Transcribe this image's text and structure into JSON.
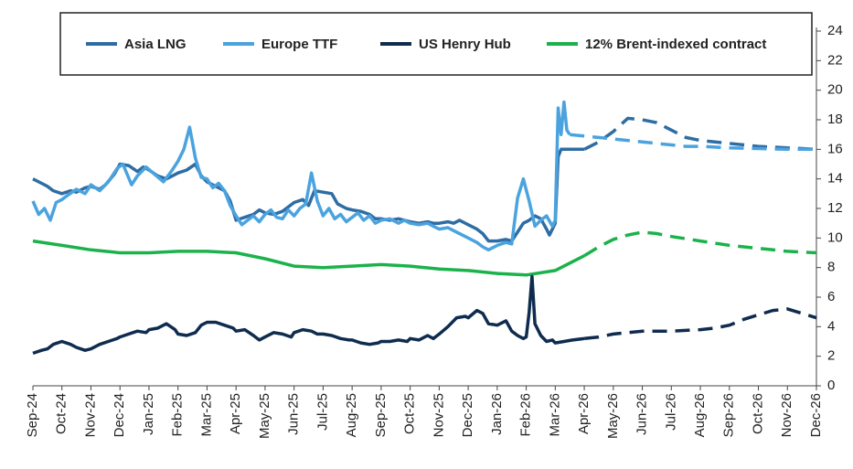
{
  "chart_data": {
    "type": "line",
    "title": "",
    "xlabel": "",
    "ylabel": "",
    "ylim": [
      0,
      24
    ],
    "y_ticks": [
      0,
      2,
      4,
      6,
      8,
      10,
      12,
      14,
      16,
      18,
      20,
      22,
      24
    ],
    "y_axis_side": "right",
    "grid": false,
    "legend_position": "top",
    "x_ticks": [
      "Sep-24",
      "Oct-24",
      "Nov-24",
      "Dec-24",
      "Jan-25",
      "Feb-25",
      "Mar-25",
      "Apr-25",
      "May-25",
      "Jun-25",
      "Jul-25",
      "Aug-25",
      "Sep-25",
      "Oct-25",
      "Nov-25",
      "Dec-25",
      "Jan-26",
      "Feb-26",
      "Mar-26",
      "Apr-26",
      "May-26",
      "Jun-26",
      "Jul-26",
      "Aug-26",
      "Sep-26",
      "Oct-26",
      "Nov-26",
      "Dec-26"
    ],
    "x_unit": "months since Sep-24",
    "series": [
      {
        "name": "Asia LNG",
        "color": "#2e6da4",
        "style": "solid",
        "points": [
          [
            0,
            14
          ],
          [
            0.3,
            13.7
          ],
          [
            0.5,
            13.5
          ],
          [
            0.7,
            13.2
          ],
          [
            1,
            13
          ],
          [
            1.3,
            13.2
          ],
          [
            1.5,
            13.1
          ],
          [
            1.8,
            13.4
          ],
          [
            2,
            13.5
          ],
          [
            2.3,
            13.3
          ],
          [
            2.5,
            13.6
          ],
          [
            2.8,
            14.3
          ],
          [
            3,
            15
          ],
          [
            3.3,
            14.9
          ],
          [
            3.6,
            14.5
          ],
          [
            3.8,
            14.8
          ],
          [
            4,
            14.6
          ],
          [
            4.3,
            14.2
          ],
          [
            4.6,
            14
          ],
          [
            4.8,
            14.2
          ],
          [
            5,
            14.4
          ],
          [
            5.3,
            14.6
          ],
          [
            5.6,
            15
          ],
          [
            5.8,
            14.2
          ],
          [
            6,
            13.8
          ],
          [
            6.3,
            13.5
          ],
          [
            6.6,
            13.2
          ],
          [
            6.8,
            12.5
          ],
          [
            7,
            11.2
          ],
          [
            7.3,
            11.4
          ],
          [
            7.6,
            11.6
          ],
          [
            7.8,
            11.9
          ],
          [
            8,
            11.7
          ],
          [
            8.3,
            11.6
          ],
          [
            8.6,
            11.8
          ],
          [
            8.8,
            12.1
          ],
          [
            9,
            12.4
          ],
          [
            9.3,
            12.6
          ],
          [
            9.5,
            12.2
          ],
          [
            9.7,
            13.2
          ],
          [
            10,
            13.1
          ],
          [
            10.3,
            13
          ],
          [
            10.5,
            12.3
          ],
          [
            10.8,
            12
          ],
          [
            11,
            11.9
          ],
          [
            11.3,
            11.8
          ],
          [
            11.6,
            11.6
          ],
          [
            11.8,
            11.3
          ],
          [
            12,
            11.3
          ],
          [
            12.3,
            11.2
          ],
          [
            12.6,
            11.3
          ],
          [
            12.8,
            11.2
          ],
          [
            13,
            11.1
          ],
          [
            13.3,
            11
          ],
          [
            13.6,
            11.1
          ],
          [
            13.8,
            11
          ],
          [
            14,
            11
          ],
          [
            14.3,
            11.1
          ],
          [
            14.5,
            11
          ],
          [
            14.7,
            11.2
          ],
          [
            15,
            10.9
          ],
          [
            15.3,
            10.6
          ],
          [
            15.5,
            10.3
          ],
          [
            15.7,
            9.8
          ],
          [
            16,
            9.8
          ],
          [
            16.3,
            9.9
          ],
          [
            16.5,
            9.8
          ],
          [
            16.7,
            10.4
          ],
          [
            16.9,
            11
          ],
          [
            17.1,
            11.2
          ],
          [
            17.3,
            11.5
          ],
          [
            17.5,
            11.3
          ],
          [
            17.7,
            10.6
          ],
          [
            17.8,
            10.2
          ],
          [
            18,
            11
          ],
          [
            18.1,
            15.5
          ],
          [
            18.2,
            16
          ],
          [
            18.6,
            16
          ],
          [
            19,
            16
          ],
          [
            19.5,
            16.5
          ],
          [
            20,
            17.2
          ],
          [
            20.5,
            18.1
          ],
          [
            21,
            18
          ],
          [
            21.5,
            17.8
          ],
          [
            22,
            17.3
          ],
          [
            22.5,
            16.8
          ],
          [
            23,
            16.6
          ],
          [
            24,
            16.4
          ],
          [
            25,
            16.2
          ],
          [
            26,
            16.1
          ],
          [
            27,
            16
          ]
        ],
        "dashed_from": 19
      },
      {
        "name": "Europe TTF",
        "color": "#4aa3df",
        "style": "solid",
        "points": [
          [
            0,
            12.5
          ],
          [
            0.2,
            11.6
          ],
          [
            0.4,
            12
          ],
          [
            0.6,
            11.2
          ],
          [
            0.8,
            12.4
          ],
          [
            1,
            12.6
          ],
          [
            1.2,
            12.9
          ],
          [
            1.5,
            13.3
          ],
          [
            1.8,
            13
          ],
          [
            2,
            13.6
          ],
          [
            2.3,
            13.2
          ],
          [
            2.6,
            13.8
          ],
          [
            2.9,
            14.7
          ],
          [
            3.1,
            15
          ],
          [
            3.4,
            13.6
          ],
          [
            3.6,
            14.2
          ],
          [
            3.9,
            14.8
          ],
          [
            4.2,
            14.3
          ],
          [
            4.5,
            13.8
          ],
          [
            4.8,
            14.6
          ],
          [
            5,
            15.2
          ],
          [
            5.2,
            16
          ],
          [
            5.4,
            17.5
          ],
          [
            5.6,
            15.4
          ],
          [
            5.8,
            14.1
          ],
          [
            6,
            14
          ],
          [
            6.2,
            13.4
          ],
          [
            6.4,
            13.7
          ],
          [
            6.6,
            13.2
          ],
          [
            6.8,
            12.2
          ],
          [
            7,
            11.5
          ],
          [
            7.2,
            10.9
          ],
          [
            7.4,
            11.2
          ],
          [
            7.6,
            11.5
          ],
          [
            7.8,
            11.1
          ],
          [
            8,
            11.6
          ],
          [
            8.2,
            11.9
          ],
          [
            8.4,
            11.4
          ],
          [
            8.6,
            11.3
          ],
          [
            8.8,
            11.9
          ],
          [
            9,
            11.5
          ],
          [
            9.2,
            12
          ],
          [
            9.4,
            12.3
          ],
          [
            9.6,
            14.4
          ],
          [
            9.8,
            12.5
          ],
          [
            10,
            11.5
          ],
          [
            10.2,
            12
          ],
          [
            10.4,
            11.3
          ],
          [
            10.6,
            11.6
          ],
          [
            10.8,
            11.1
          ],
          [
            11,
            11.4
          ],
          [
            11.2,
            11.7
          ],
          [
            11.4,
            11.2
          ],
          [
            11.6,
            11.5
          ],
          [
            11.8,
            11
          ],
          [
            12,
            11.2
          ],
          [
            12.3,
            11.3
          ],
          [
            12.6,
            11
          ],
          [
            12.8,
            11.2
          ],
          [
            13,
            11
          ],
          [
            13.3,
            10.9
          ],
          [
            13.6,
            11
          ],
          [
            13.8,
            10.8
          ],
          [
            14,
            10.6
          ],
          [
            14.3,
            10.7
          ],
          [
            14.5,
            10.5
          ],
          [
            14.7,
            10.3
          ],
          [
            15,
            10
          ],
          [
            15.3,
            9.7
          ],
          [
            15.5,
            9.4
          ],
          [
            15.7,
            9.2
          ],
          [
            16,
            9.5
          ],
          [
            16.3,
            9.7
          ],
          [
            16.5,
            9.6
          ],
          [
            16.7,
            12.7
          ],
          [
            16.9,
            14
          ],
          [
            17.1,
            12.5
          ],
          [
            17.3,
            10.8
          ],
          [
            17.5,
            11.2
          ],
          [
            17.7,
            11.5
          ],
          [
            17.9,
            10.8
          ],
          [
            18,
            11.2
          ],
          [
            18.1,
            18.8
          ],
          [
            18.2,
            17
          ],
          [
            18.3,
            19.2
          ],
          [
            18.4,
            17.3
          ],
          [
            18.5,
            17
          ],
          [
            19,
            16.9
          ],
          [
            19.5,
            16.8
          ],
          [
            20,
            16.7
          ],
          [
            20.5,
            16.6
          ],
          [
            21,
            16.5
          ],
          [
            21.5,
            16.4
          ],
          [
            22,
            16.3
          ],
          [
            22.5,
            16.2
          ],
          [
            23,
            16.2
          ],
          [
            24,
            16.1
          ],
          [
            25,
            16.05
          ],
          [
            26,
            16.0
          ],
          [
            27,
            16
          ]
        ],
        "dashed_from": 18.5
      },
      {
        "name": "US Henry Hub",
        "color": "#0f2c4f",
        "style": "solid",
        "points": [
          [
            0,
            2.2
          ],
          [
            0.3,
            2.4
          ],
          [
            0.5,
            2.5
          ],
          [
            0.7,
            2.8
          ],
          [
            1,
            3
          ],
          [
            1.3,
            2.8
          ],
          [
            1.5,
            2.6
          ],
          [
            1.8,
            2.4
          ],
          [
            2,
            2.5
          ],
          [
            2.3,
            2.8
          ],
          [
            2.6,
            3
          ],
          [
            2.9,
            3.2
          ],
          [
            3,
            3.3
          ],
          [
            3.3,
            3.5
          ],
          [
            3.6,
            3.7
          ],
          [
            3.9,
            3.6
          ],
          [
            4,
            3.8
          ],
          [
            4.3,
            3.9
          ],
          [
            4.6,
            4.2
          ],
          [
            4.9,
            3.8
          ],
          [
            5,
            3.5
          ],
          [
            5.3,
            3.4
          ],
          [
            5.6,
            3.6
          ],
          [
            5.8,
            4.1
          ],
          [
            6,
            4.3
          ],
          [
            6.3,
            4.3
          ],
          [
            6.6,
            4.1
          ],
          [
            6.9,
            3.9
          ],
          [
            7,
            3.7
          ],
          [
            7.3,
            3.8
          ],
          [
            7.6,
            3.4
          ],
          [
            7.8,
            3.1
          ],
          [
            8,
            3.3
          ],
          [
            8.3,
            3.6
          ],
          [
            8.6,
            3.5
          ],
          [
            8.9,
            3.3
          ],
          [
            9,
            3.6
          ],
          [
            9.3,
            3.8
          ],
          [
            9.6,
            3.7
          ],
          [
            9.8,
            3.5
          ],
          [
            10,
            3.5
          ],
          [
            10.3,
            3.4
          ],
          [
            10.6,
            3.2
          ],
          [
            10.9,
            3.1
          ],
          [
            11,
            3.1
          ],
          [
            11.3,
            2.9
          ],
          [
            11.6,
            2.8
          ],
          [
            11.9,
            2.9
          ],
          [
            12,
            3
          ],
          [
            12.3,
            3
          ],
          [
            12.6,
            3.1
          ],
          [
            12.9,
            3
          ],
          [
            13,
            3.2
          ],
          [
            13.3,
            3.1
          ],
          [
            13.6,
            3.4
          ],
          [
            13.8,
            3.2
          ],
          [
            14,
            3.5
          ],
          [
            14.3,
            4
          ],
          [
            14.6,
            4.6
          ],
          [
            14.9,
            4.7
          ],
          [
            15,
            4.6
          ],
          [
            15.3,
            5.1
          ],
          [
            15.5,
            4.9
          ],
          [
            15.7,
            4.2
          ],
          [
            16,
            4.1
          ],
          [
            16.3,
            4.4
          ],
          [
            16.5,
            3.7
          ],
          [
            16.7,
            3.4
          ],
          [
            16.9,
            3.2
          ],
          [
            17,
            3.3
          ],
          [
            17.1,
            5
          ],
          [
            17.2,
            7.4
          ],
          [
            17.3,
            4.2
          ],
          [
            17.5,
            3.4
          ],
          [
            17.7,
            3
          ],
          [
            17.9,
            3.1
          ],
          [
            18,
            2.9
          ],
          [
            18.3,
            3
          ],
          [
            18.6,
            3.1
          ],
          [
            19,
            3.2
          ],
          [
            19.5,
            3.3
          ],
          [
            20,
            3.5
          ],
          [
            20.5,
            3.6
          ],
          [
            21,
            3.7
          ],
          [
            22,
            3.7
          ],
          [
            23,
            3.8
          ],
          [
            23.5,
            3.9
          ],
          [
            24,
            4.1
          ],
          [
            24.5,
            4.5
          ],
          [
            25,
            4.8
          ],
          [
            25.5,
            5.1
          ],
          [
            26,
            5.2
          ],
          [
            26.5,
            4.9
          ],
          [
            27,
            4.6
          ]
        ],
        "dashed_from": 19
      },
      {
        "name": "12% Brent-indexed contract",
        "color": "#1bb24b",
        "style": "solid",
        "points": [
          [
            0,
            9.8
          ],
          [
            1,
            9.5
          ],
          [
            2,
            9.2
          ],
          [
            3,
            9
          ],
          [
            4,
            9
          ],
          [
            5,
            9.1
          ],
          [
            6,
            9.1
          ],
          [
            7,
            9
          ],
          [
            8,
            8.6
          ],
          [
            9,
            8.1
          ],
          [
            10,
            8
          ],
          [
            11,
            8.1
          ],
          [
            12,
            8.2
          ],
          [
            13,
            8.1
          ],
          [
            14,
            7.9
          ],
          [
            15,
            7.8
          ],
          [
            16,
            7.6
          ],
          [
            17,
            7.5
          ],
          [
            18,
            7.8
          ],
          [
            18.5,
            8.3
          ],
          [
            19,
            8.8
          ],
          [
            19.5,
            9.4
          ],
          [
            20,
            9.9
          ],
          [
            20.5,
            10.2
          ],
          [
            21,
            10.4
          ],
          [
            21.5,
            10.3
          ],
          [
            22,
            10.1
          ],
          [
            23,
            9.8
          ],
          [
            24,
            9.5
          ],
          [
            25,
            9.3
          ],
          [
            26,
            9.1
          ],
          [
            27,
            9
          ]
        ],
        "dashed_from": 19
      }
    ]
  }
}
